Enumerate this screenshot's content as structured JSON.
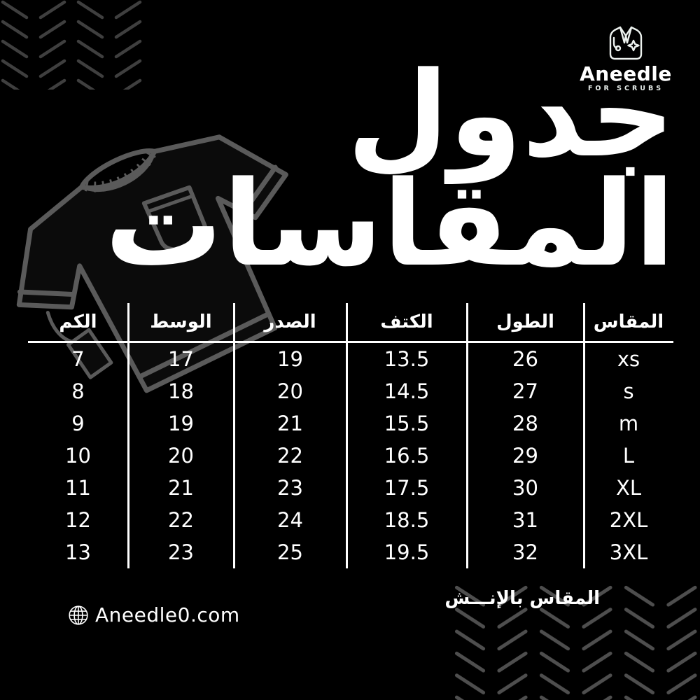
{
  "brand": {
    "name": "Aneedle",
    "tagline": "FOR SCRUBS",
    "website": "Aneedle0.com",
    "logo_icon": "scrubs-coat-icon",
    "website_icon": "globe-icon"
  },
  "title": {
    "line1": "جدول",
    "line2": "المقاسات"
  },
  "chart_data": {
    "type": "table",
    "title": "جدول المقاسات",
    "headers_rtl": [
      "المقاس",
      "الطول",
      "الكتف",
      "الصدر",
      "الوسط",
      "الكم"
    ],
    "rows_rtl": [
      [
        "xs",
        "26",
        "13.5",
        "19",
        "17",
        "7"
      ],
      [
        "s",
        "27",
        "14.5",
        "20",
        "18",
        "8"
      ],
      [
        "m",
        "28",
        "15.5",
        "21",
        "19",
        "9"
      ],
      [
        "L",
        "29",
        "16.5",
        "22",
        "20",
        "10"
      ],
      [
        "XL",
        "30",
        "17.5",
        "23",
        "21",
        "11"
      ],
      [
        "2XL",
        "31",
        "18.5",
        "24",
        "22",
        "12"
      ],
      [
        "3XL",
        "32",
        "19.5",
        "25",
        "23",
        "13"
      ]
    ],
    "unit_note": "المقاس بالإنـــش",
    "grid": "vertical column separators + single header underline, no outer border"
  },
  "colors": {
    "background": "#000000",
    "text": "#ffffff",
    "pattern_top_left": "#3f3f3f",
    "pattern_bottom_right": "#4e4e4e",
    "shirt_outline": "#5a5a5a"
  }
}
